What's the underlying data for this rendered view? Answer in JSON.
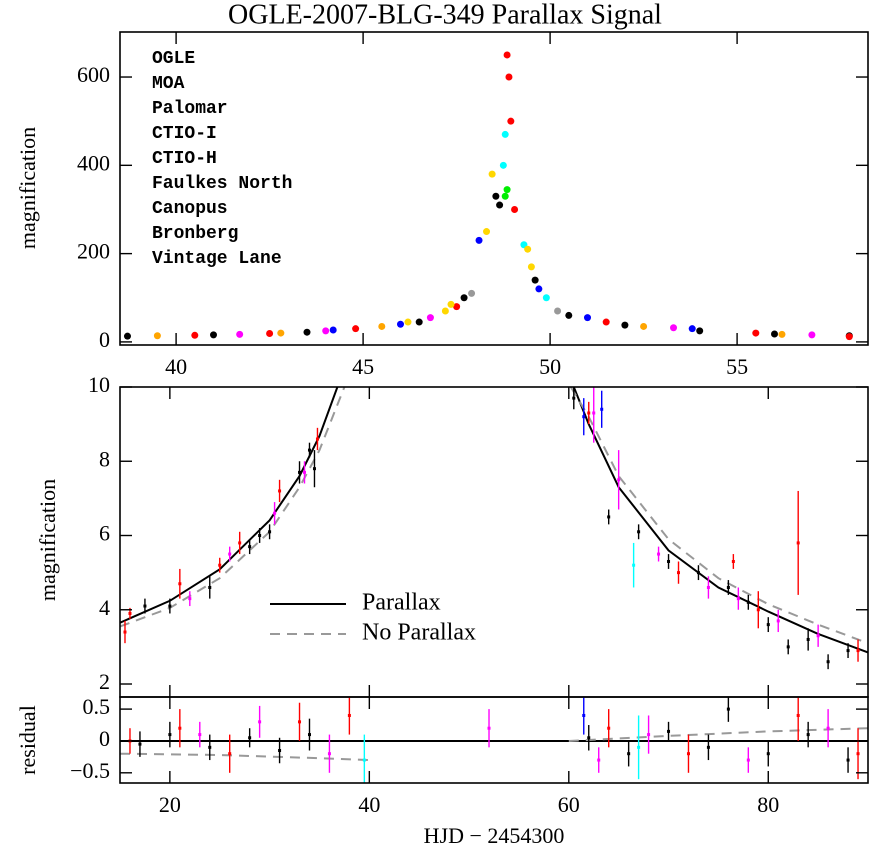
{
  "chart_data": [
    {
      "type": "scatter",
      "title": "OGLE-2007-BLG-349 Parallax Signal",
      "ylabel": "magnification",
      "xlim": [
        38.5,
        58.5
      ],
      "ylim": [
        -7,
        702
      ],
      "xticks": [
        40,
        45,
        50,
        55
      ],
      "yticks": [
        0,
        200,
        400,
        600
      ],
      "legend": "upper left",
      "series": [
        {
          "name": "OGLE",
          "color": "#000000",
          "x": [
            38.7,
            41,
            43.5,
            46.5,
            47.7,
            48.55,
            48.65,
            49.6,
            50.5,
            52,
            54,
            56,
            58
          ],
          "values": [
            13,
            16,
            22,
            45,
            100,
            330,
            310,
            140,
            60,
            38,
            25,
            18,
            14
          ]
        },
        {
          "name": "MOA",
          "color": "#ff0000",
          "x": [
            40.5,
            42.5,
            44.8,
            47.5,
            48.85,
            48.9,
            48.95,
            49.05,
            51.5,
            55.5,
            58
          ],
          "values": [
            15,
            19,
            30,
            80,
            650,
            600,
            500,
            300,
            45,
            20,
            12
          ]
        },
        {
          "name": "Palomar",
          "color": "#00ee00",
          "x": [
            48.8,
            48.85
          ],
          "values": [
            330,
            345
          ]
        },
        {
          "name": "CTIO-I",
          "color": "#ff00ff",
          "x": [
            41.7,
            44,
            46.8,
            53.3,
            57
          ],
          "values": [
            17,
            25,
            55,
            32,
            16
          ]
        },
        {
          "name": "CTIO-H",
          "color": "#ffa500",
          "x": [
            39.5,
            42.8,
            45.5,
            52.5,
            56.2
          ],
          "values": [
            14,
            20,
            35,
            35,
            17
          ]
        },
        {
          "name": "Faulkes North",
          "color": "#00ffff",
          "x": [
            48.75,
            48.8,
            49.3,
            49.9
          ],
          "values": [
            400,
            470,
            220,
            100
          ]
        },
        {
          "name": "Canopus",
          "color": "#0000ff",
          "x": [
            44.2,
            46,
            48.1,
            49.7,
            51,
            53.8
          ],
          "values": [
            27,
            40,
            230,
            120,
            55,
            30
          ]
        },
        {
          "name": "Bronberg",
          "color": "#ffd700",
          "x": [
            46.2,
            47.2,
            47.35,
            48.3,
            48.45,
            49.4,
            49.5
          ],
          "values": [
            45,
            70,
            85,
            250,
            380,
            210,
            170
          ]
        },
        {
          "name": "Vintage Lane",
          "color": "#999999",
          "x": [
            47.9,
            50.2
          ],
          "values": [
            110,
            70
          ]
        }
      ]
    },
    {
      "type": "line",
      "ylabel": "magnification",
      "xlim": [
        15,
        90
      ],
      "ylim": [
        1.65,
        10
      ],
      "yticks": [
        2,
        4,
        6,
        8,
        10
      ],
      "legend": "lower center",
      "series": [
        {
          "name": "Parallax",
          "color": "#000000",
          "dash": false,
          "x": [
            15,
            20,
            25,
            30,
            33,
            35,
            36.8,
            48.9,
            60.5,
            62,
            65,
            70,
            75,
            80,
            85,
            90
          ],
          "values": [
            3.65,
            4.24,
            5.09,
            6.41,
            7.6,
            8.68,
            10,
            null,
            10,
            9,
            7.3,
            5.6,
            4.6,
            3.95,
            3.35,
            2.85
          ]
        },
        {
          "name": "No Parallax",
          "color": "#999999",
          "dash": true,
          "x": [
            15,
            20,
            25,
            30,
            33,
            35,
            37.5,
            48.9,
            60.2,
            62,
            65,
            70,
            75,
            80,
            85,
            90
          ],
          "values": [
            3.55,
            4.05,
            4.85,
            6.1,
            7.3,
            8.3,
            10,
            null,
            10,
            9.2,
            7.6,
            5.9,
            4.85,
            4.15,
            3.6,
            3.1
          ]
        }
      ],
      "points": [
        {
          "color": "#000000",
          "x": [
            17.5,
            20,
            24,
            28,
            29,
            30,
            33,
            34,
            34.5,
            60.5,
            64,
            67,
            70,
            73,
            76,
            78,
            80,
            82,
            84,
            86,
            88
          ],
          "values": [
            4.1,
            4.1,
            4.6,
            5.7,
            6.0,
            6.1,
            7.7,
            8.3,
            7.8,
            9.7,
            6.5,
            6.1,
            5.3,
            5.0,
            4.6,
            4.2,
            3.6,
            3.0,
            3.2,
            2.6,
            2.9
          ],
          "errors": [
            0.2,
            0.2,
            0.3,
            0.2,
            0.2,
            0.2,
            0.3,
            0.2,
            0.5,
            0.3,
            0.2,
            0.2,
            0.2,
            0.2,
            0.2,
            0.2,
            0.2,
            0.2,
            0.3,
            0.2,
            0.2
          ]
        },
        {
          "color": "#ff0000",
          "x": [
            15.5,
            16,
            21,
            25,
            27,
            31,
            34.8,
            62,
            71,
            76.5,
            79,
            83,
            89
          ],
          "values": [
            3.4,
            3.9,
            4.7,
            5.2,
            5.8,
            7.2,
            8.6,
            9.3,
            5.0,
            5.3,
            4.0,
            5.8,
            2.9
          ],
          "errors": [
            0.3,
            0.15,
            0.4,
            0.2,
            0.3,
            0.3,
            0.3,
            0.3,
            0.3,
            0.2,
            0.5,
            1.4,
            0.3
          ]
        },
        {
          "color": "#ff00ff",
          "x": [
            22,
            26,
            30.5,
            33.5,
            62.5,
            65,
            69,
            74,
            77,
            81,
            85
          ],
          "values": [
            4.3,
            5.5,
            6.6,
            7.7,
            9.3,
            7.5,
            5.5,
            4.6,
            4.3,
            3.7,
            3.3
          ],
          "errors": [
            0.2,
            0.2,
            0.3,
            0.3,
            0.8,
            0.8,
            0.2,
            0.3,
            0.3,
            0.3,
            0.3
          ]
        },
        {
          "color": "#00ffff",
          "x": [
            66.5
          ],
          "values": [
            5.2
          ],
          "errors": [
            0.6
          ]
        },
        {
          "color": "#0000ff",
          "x": [
            61.5,
            63.3
          ],
          "values": [
            9.2,
            9.4
          ],
          "errors": [
            0.5,
            0.5
          ]
        }
      ]
    },
    {
      "type": "line",
      "ylabel": "residual",
      "xlabel": "HJD − 2454300",
      "xlim": [
        15,
        90
      ],
      "ylim": [
        -0.66,
        0.69
      ],
      "xticks": [
        20,
        40,
        60,
        80
      ],
      "yticks": [
        {
          "value": -0.5,
          "label": "−0.5"
        },
        0,
        0.5
      ],
      "series": [
        {
          "color": "#000000",
          "dash": false,
          "x": [
            15,
            90
          ],
          "values": [
            0,
            0
          ]
        },
        {
          "color": "#999999",
          "dash": true,
          "x": [
            15,
            25,
            35,
            40,
            48.9,
            60,
            70,
            80,
            90
          ],
          "values": [
            -0.2,
            -0.22,
            -0.27,
            -0.3,
            null,
            0.0,
            0.08,
            0.15,
            0.2
          ]
        }
      ],
      "points": [
        {
          "color": "#000000",
          "x": [
            17,
            20,
            24,
            28,
            31,
            34,
            62,
            66,
            70,
            74,
            76,
            80,
            84,
            88
          ],
          "values": [
            -0.05,
            0.1,
            -0.1,
            0.05,
            -0.15,
            0.1,
            0.05,
            -0.2,
            0.15,
            -0.1,
            0.5,
            -0.2,
            0.1,
            -0.3
          ],
          "errors": [
            0.2,
            0.2,
            0.2,
            0.15,
            0.2,
            0.25,
            0.2,
            0.2,
            0.15,
            0.2,
            0.2,
            0.2,
            0.2,
            0.2
          ]
        },
        {
          "color": "#ff0000",
          "x": [
            16,
            21,
            26,
            33,
            38,
            64,
            72,
            83,
            89
          ],
          "values": [
            0.0,
            0.2,
            -0.2,
            0.3,
            0.4,
            0.2,
            -0.2,
            0.4,
            -0.2
          ],
          "errors": [
            0.2,
            0.3,
            0.3,
            0.3,
            0.3,
            0.3,
            0.3,
            0.4,
            0.4
          ]
        },
        {
          "color": "#ff00ff",
          "x": [
            23,
            29,
            36,
            52,
            63,
            68,
            78,
            86
          ],
          "values": [
            0.1,
            0.3,
            -0.2,
            0.2,
            -0.3,
            0.1,
            -0.3,
            0.2
          ],
          "errors": [
            0.2,
            0.25,
            0.3,
            0.3,
            0.2,
            0.3,
            0.2,
            0.3
          ]
        },
        {
          "color": "#00ffff",
          "x": [
            39.5,
            67
          ],
          "values": [
            -0.3,
            -0.1
          ],
          "errors": [
            0.4,
            0.5
          ]
        },
        {
          "color": "#0000ff",
          "x": [
            61.5
          ],
          "values": [
            0.4
          ],
          "errors": [
            0.3
          ]
        }
      ]
    }
  ]
}
